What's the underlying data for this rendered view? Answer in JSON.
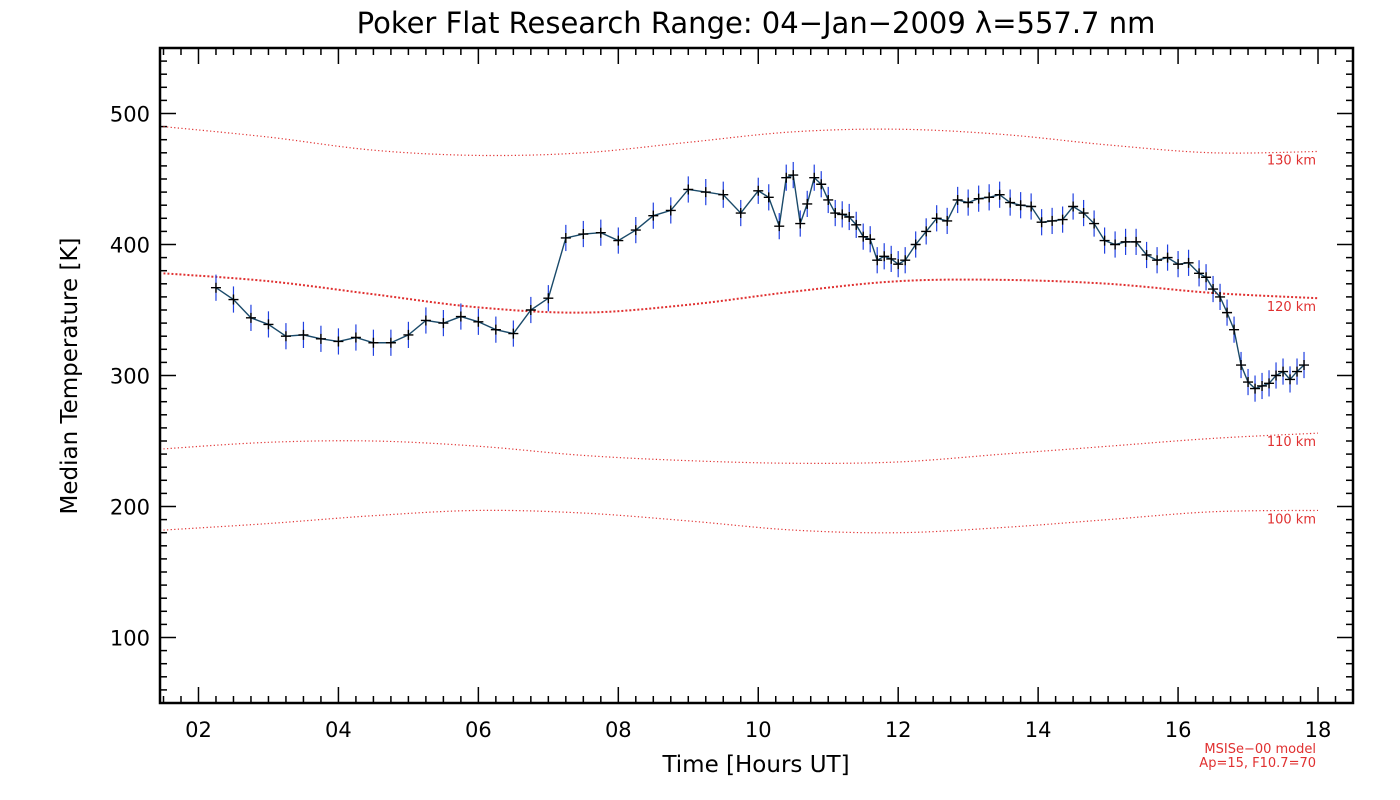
{
  "chart_data": {
    "type": "line",
    "title": "Poker Flat Research Range: 04−Jan−2009 λ=557.7 nm",
    "xlabel": "Time [Hours UT]",
    "ylabel": "Median Temperature [K]",
    "xlim": [
      1.45,
      18.5
    ],
    "ylim": [
      50,
      550
    ],
    "xticks": [
      2,
      4,
      6,
      8,
      10,
      12,
      14,
      16,
      18
    ],
    "xtick_labels": [
      "02",
      "04",
      "06",
      "08",
      "10",
      "12",
      "14",
      "16",
      "18"
    ],
    "yticks": [
      100,
      200,
      300,
      400,
      500
    ],
    "ytick_labels": [
      "100",
      "200",
      "300",
      "400",
      "500"
    ],
    "line_color": "#1a4a6a",
    "errorbar_color": "#2040e0",
    "marker_color": "#000000",
    "model_color": "#e03030",
    "measurement": {
      "name": "Median Temperature",
      "error": 10,
      "x": [
        2.25,
        2.5,
        2.75,
        3.0,
        3.25,
        3.5,
        3.75,
        4.0,
        4.25,
        4.5,
        4.75,
        5.0,
        5.25,
        5.5,
        5.75,
        6.0,
        6.25,
        6.5,
        6.75,
        7.0,
        7.25,
        7.5,
        7.75,
        8.0,
        8.25,
        8.5,
        8.75,
        9.0,
        9.25,
        9.5,
        9.75,
        10.0,
        10.15,
        10.3,
        10.4,
        10.5,
        10.6,
        10.7,
        10.8,
        10.9,
        11.0,
        11.1,
        11.2,
        11.3,
        11.4,
        11.5,
        11.6,
        11.7,
        11.8,
        11.9,
        12.0,
        12.1,
        12.25,
        12.4,
        12.55,
        12.7,
        12.85,
        13.0,
        13.15,
        13.3,
        13.45,
        13.6,
        13.75,
        13.9,
        14.05,
        14.2,
        14.35,
        14.5,
        14.65,
        14.8,
        14.95,
        15.1,
        15.25,
        15.4,
        15.55,
        15.7,
        15.85,
        16.0,
        16.15,
        16.3,
        16.4,
        16.5,
        16.6,
        16.7,
        16.8,
        16.9,
        17.0,
        17.1,
        17.2,
        17.3,
        17.4,
        17.5,
        17.6,
        17.7,
        17.8
      ],
      "y": [
        367,
        358,
        344,
        339,
        330,
        331,
        328,
        326,
        329,
        325,
        325,
        331,
        342,
        340,
        345,
        341,
        335,
        332,
        350,
        359,
        405,
        408,
        409,
        403,
        411,
        422,
        426,
        442,
        440,
        438,
        424,
        441,
        436,
        414,
        451,
        453,
        416,
        431,
        451,
        446,
        434,
        424,
        423,
        421,
        415,
        406,
        404,
        388,
        391,
        389,
        385,
        388,
        400,
        410,
        420,
        418,
        434,
        432,
        435,
        436,
        438,
        432,
        430,
        429,
        417,
        418,
        419,
        429,
        424,
        416,
        403,
        400,
        402,
        402,
        392,
        388,
        390,
        385,
        386,
        378,
        375,
        366,
        360,
        348,
        335,
        308,
        295,
        290,
        292,
        294,
        300,
        303,
        297,
        303,
        308
      ]
    },
    "model_curves": [
      {
        "label": "130 km",
        "x": [
          1.5,
          3,
          4.5,
          6,
          7.5,
          9,
          10.5,
          12,
          13.5,
          15,
          16.5,
          18.0
        ],
        "y": [
          490,
          482,
          472,
          468,
          470,
          478,
          486,
          488,
          484,
          476,
          470,
          471
        ]
      },
      {
        "label": "120 km",
        "x": [
          1.5,
          3,
          4.5,
          6,
          7.5,
          9,
          10.5,
          12,
          13.5,
          15,
          16.5,
          18.0
        ],
        "y": [
          378,
          372,
          362,
          352,
          348,
          354,
          364,
          372,
          373,
          370,
          363,
          359
        ]
      },
      {
        "label": "110 km",
        "x": [
          1.5,
          3,
          4.5,
          6,
          7.5,
          9,
          10.5,
          12,
          13.5,
          15,
          16.5,
          18.0
        ],
        "y": [
          244,
          249,
          250,
          246,
          239,
          235,
          233,
          234,
          240,
          246,
          252,
          256
        ]
      },
      {
        "label": "100 km",
        "x": [
          1.5,
          3,
          4.5,
          6,
          7.5,
          9,
          10.5,
          12,
          13.5,
          15,
          16.5,
          18.0
        ],
        "y": [
          182,
          187,
          193,
          197,
          195,
          189,
          182,
          180,
          184,
          190,
          196,
          197
        ]
      }
    ],
    "model_note": [
      "MSISe−00 model",
      "Ap=15, F10.7=70"
    ]
  }
}
